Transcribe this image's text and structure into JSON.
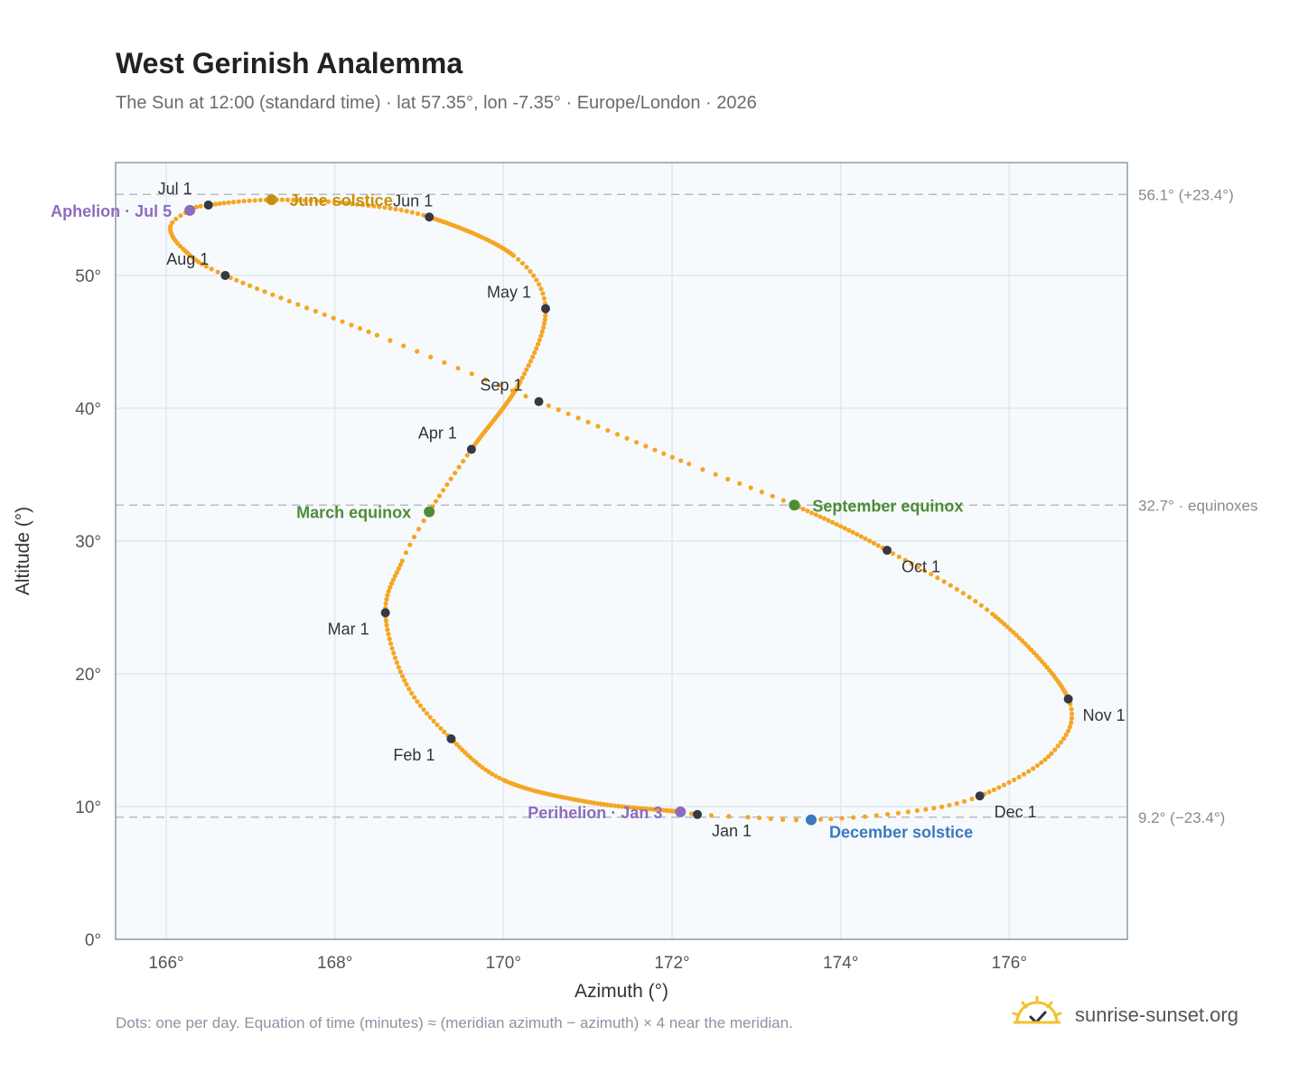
{
  "title": "West Gerinish Analemma",
  "subtitle": "The Sun at 12:00 (standard time) · lat 57.35°, lon -7.35° · Europe/London · 2026",
  "footnote": "Dots: one per day. Equation of time (minutes) ≈ (meridian azimuth − azimuth) × 4 near the meridian.",
  "brand": {
    "name": "sunrise-sunset.org",
    "icon": "sun-logo-icon"
  },
  "colors": {
    "curve": "#f5a623",
    "month_marker": "#333a44",
    "june_solstice": "#c8900a",
    "december_solstice": "#3a78c0",
    "equinox": "#4e8c35",
    "apsis": "#8e6bbf",
    "plot_bg": "#f7fafc",
    "grid": "#e2e8ee",
    "frame": "#8f99a6",
    "ref_line": "#b5bcc4"
  },
  "chart_data": {
    "type": "scatter",
    "title": "West Gerinish Analemma",
    "xlabel": "Azimuth (°)",
    "ylabel": "Altitude (°)",
    "xlim": [
      165.4,
      177.4
    ],
    "ylim": [
      0,
      58.5
    ],
    "x_ticks": [
      166,
      168,
      170,
      172,
      174,
      176
    ],
    "x_tick_labels": [
      "166°",
      "168°",
      "170°",
      "172°",
      "174°",
      "176°"
    ],
    "y_ticks": [
      0,
      10,
      20,
      30,
      40,
      50
    ],
    "y_tick_labels": [
      "0°",
      "10°",
      "20°",
      "30°",
      "40°",
      "50°"
    ],
    "grid": true,
    "reference_lines": [
      {
        "y": 56.1,
        "label": "56.1° (+23.4°)"
      },
      {
        "y": 32.7,
        "label": "32.7° · equinoxes"
      },
      {
        "y": 9.2,
        "label": "9.2° (−23.4°)"
      }
    ],
    "month_markers": [
      {
        "label": "Jan 1",
        "x": 172.3,
        "y": 9.4
      },
      {
        "label": "Feb 1",
        "x": 169.38,
        "y": 15.1
      },
      {
        "label": "Mar 1",
        "x": 168.6,
        "y": 24.6
      },
      {
        "label": "Apr 1",
        "x": 169.62,
        "y": 36.9
      },
      {
        "label": "May 1",
        "x": 170.5,
        "y": 47.5
      },
      {
        "label": "Jun 1",
        "x": 169.12,
        "y": 54.4
      },
      {
        "label": "Jul 1",
        "x": 166.5,
        "y": 55.3
      },
      {
        "label": "Aug 1",
        "x": 166.7,
        "y": 50.0
      },
      {
        "label": "Sep 1",
        "x": 170.42,
        "y": 40.5
      },
      {
        "label": "Oct 1",
        "x": 174.55,
        "y": 29.3
      },
      {
        "label": "Nov 1",
        "x": 176.7,
        "y": 18.1
      },
      {
        "label": "Dec 1",
        "x": 175.65,
        "y": 10.8
      }
    ],
    "events": [
      {
        "label": "June solstice",
        "x": 167.25,
        "y": 55.7,
        "kind": "june_solstice"
      },
      {
        "label": "December solstice",
        "x": 173.65,
        "y": 9.0,
        "kind": "december_solstice"
      },
      {
        "label": "March equinox",
        "x": 169.12,
        "y": 32.2,
        "kind": "equinox"
      },
      {
        "label": "September equinox",
        "x": 173.45,
        "y": 32.7,
        "kind": "equinox"
      },
      {
        "label": "Aphelion · Jul 5",
        "x": 166.28,
        "y": 54.9,
        "kind": "apsis"
      },
      {
        "label": "Perihelion · Jan 3",
        "x": 172.1,
        "y": 9.6,
        "kind": "apsis"
      }
    ]
  }
}
